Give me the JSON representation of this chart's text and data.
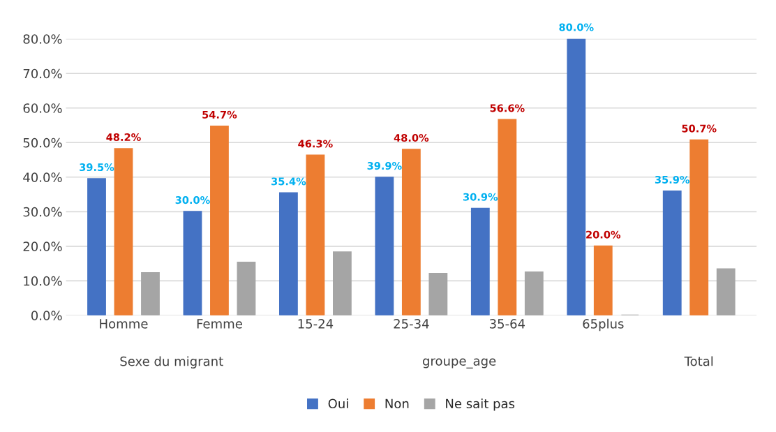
{
  "chart_data": {
    "type": "bar",
    "categories": [
      "Homme",
      "Femme",
      "15-24",
      "25-34",
      "35-64",
      "65plus",
      null
    ],
    "series": [
      {
        "name": "Oui",
        "color": "#4472c4",
        "values": [
          39.5,
          30.0,
          35.4,
          39.9,
          30.9,
          80.0,
          35.9
        ],
        "value_labels": [
          "39.5%",
          "30.0%",
          "35.4%",
          "39.9%",
          "30.9%",
          "80.0%",
          "35.9%"
        ]
      },
      {
        "name": "Non",
        "color": "#ed7d31",
        "values": [
          48.2,
          54.7,
          46.3,
          48.0,
          56.6,
          20.0,
          50.7
        ],
        "value_labels": [
          "48.2%",
          "54.7%",
          "46.3%",
          "48.0%",
          "56.6%",
          "20.0%",
          "50.7%"
        ]
      },
      {
        "name": "Ne sait pas",
        "color": "#a5a5a5",
        "values": [
          12.3,
          15.3,
          18.3,
          12.1,
          12.5,
          0,
          13.4
        ]
      }
    ],
    "annotations": [
      "Sexe du migrant",
      "groupe_age",
      "Total"
    ],
    "ylim": [
      0,
      80
    ],
    "yticks": [
      {
        "value": 0,
        "label": "0.0%"
      },
      {
        "value": 10,
        "label": "10.0%"
      },
      {
        "value": 20,
        "label": "20.0%"
      },
      {
        "value": 30,
        "label": "30.0%"
      },
      {
        "value": 40,
        "label": "40.0%"
      },
      {
        "value": 50,
        "label": "50.0%"
      },
      {
        "value": 60,
        "label": "60.0%"
      },
      {
        "value": 70,
        "label": "70.0%"
      },
      {
        "value": 80,
        "label": "80.0%"
      }
    ],
    "grid": "y",
    "legend": "bottom"
  }
}
